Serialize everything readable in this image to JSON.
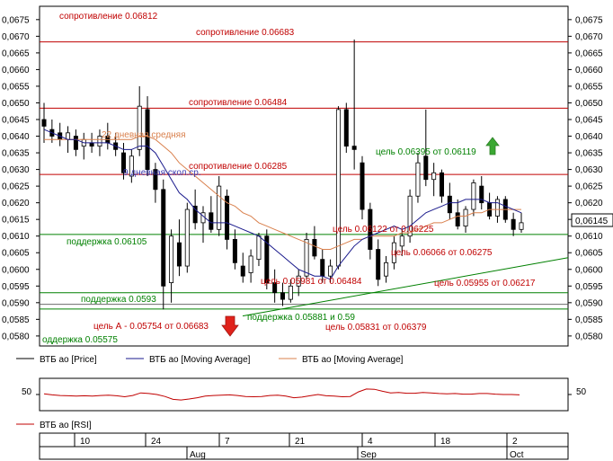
{
  "colors": {
    "resistance": "#c00000",
    "support": "#008000",
    "ma_blue": "#1a1a8c",
    "ma_orange": "#d9804d",
    "rsi": "#c00000",
    "trend": "#008000",
    "candle_up": "#ffffff",
    "candle_down": "#000000"
  },
  "chart_data": [
    {
      "type": "candlestick",
      "title": "",
      "y_ticks": [
        "0,0675",
        "0,0670",
        "0,0665",
        "0,0660",
        "0,0655",
        "0,0650",
        "0,0645",
        "0,0640",
        "0,0635",
        "0,0630",
        "0,0625",
        "0,0620",
        "0,0615",
        "0,0610",
        "0,0605",
        "0,0600",
        "0,0595",
        "0,0590",
        "0,0585",
        "0,0580"
      ],
      "ylim": [
        0.0577,
        0.0679
      ],
      "current_price_label": "0,06145",
      "current_price": 0.06145,
      "x_ticks": [
        "10",
        "24",
        "7",
        "21",
        "4",
        "18",
        "2"
      ],
      "x_months": [
        "Aug",
        "Sep",
        "Oct"
      ],
      "legend": [
        "ВТБ ао [Price]",
        "ВТБ ао [Moving Average]",
        "ВТБ ао [Moving Average]"
      ],
      "ohlc": [
        [
          0.0645,
          0.065,
          0.0638,
          0.0643
        ],
        [
          0.0642,
          0.0645,
          0.0638,
          0.064
        ],
        [
          0.0641,
          0.0644,
          0.0637,
          0.0639
        ],
        [
          0.0639,
          0.0643,
          0.0635,
          0.0641
        ],
        [
          0.064,
          0.0642,
          0.0634,
          0.0636
        ],
        [
          0.0637,
          0.0641,
          0.0633,
          0.0639
        ],
        [
          0.0638,
          0.0641,
          0.0635,
          0.0637
        ],
        [
          0.0637,
          0.0642,
          0.0634,
          0.064
        ],
        [
          0.064,
          0.0644,
          0.0636,
          0.0638
        ],
        [
          0.0638,
          0.0641,
          0.0634,
          0.0636
        ],
        [
          0.0635,
          0.0638,
          0.0627,
          0.0629
        ],
        [
          0.0628,
          0.0636,
          0.0626,
          0.0634
        ],
        [
          0.0636,
          0.0655,
          0.0634,
          0.0649
        ],
        [
          0.0648,
          0.0652,
          0.0628,
          0.063
        ],
        [
          0.063,
          0.0632,
          0.062,
          0.0624
        ],
        [
          0.0624,
          0.0627,
          0.0588,
          0.0595
        ],
        [
          0.0596,
          0.0612,
          0.059,
          0.061
        ],
        [
          0.0608,
          0.0615,
          0.0598,
          0.0601
        ],
        [
          0.0601,
          0.062,
          0.0599,
          0.0618
        ],
        [
          0.0619,
          0.0624,
          0.0612,
          0.0614
        ],
        [
          0.0614,
          0.0619,
          0.0608,
          0.0617
        ],
        [
          0.0617,
          0.0622,
          0.0611,
          0.0612
        ],
        [
          0.0612,
          0.0628,
          0.061,
          0.0625
        ],
        [
          0.0622,
          0.0624,
          0.0606,
          0.0609
        ],
        [
          0.0609,
          0.0612,
          0.06,
          0.0602
        ],
        [
          0.0601,
          0.0605,
          0.0596,
          0.0598
        ],
        [
          0.0599,
          0.0606,
          0.0596,
          0.0604
        ],
        [
          0.0603,
          0.0611,
          0.0601,
          0.061
        ],
        [
          0.061,
          0.0612,
          0.0594,
          0.0596
        ],
        [
          0.0596,
          0.06,
          0.059,
          0.0593
        ],
        [
          0.0593,
          0.0596,
          0.0589,
          0.0591
        ],
        [
          0.0591,
          0.0597,
          0.059,
          0.0595
        ],
        [
          0.0595,
          0.06,
          0.0592,
          0.0598
        ],
        [
          0.0598,
          0.0611,
          0.0597,
          0.0609
        ],
        [
          0.0609,
          0.0613,
          0.0603,
          0.0604
        ],
        [
          0.0603,
          0.0606,
          0.0596,
          0.0598
        ],
        [
          0.0598,
          0.0603,
          0.0596,
          0.0601
        ],
        [
          0.0601,
          0.0649,
          0.06,
          0.0648
        ],
        [
          0.0648,
          0.065,
          0.0635,
          0.0637
        ],
        [
          0.0637,
          0.0669,
          0.063,
          0.0636
        ],
        [
          0.0632,
          0.0634,
          0.0615,
          0.0618
        ],
        [
          0.0618,
          0.062,
          0.0603,
          0.0606
        ],
        [
          0.0606,
          0.0609,
          0.0595,
          0.0597
        ],
        [
          0.0598,
          0.0604,
          0.0596,
          0.0602
        ],
        [
          0.0602,
          0.061,
          0.06,
          0.0608
        ],
        [
          0.0607,
          0.0612,
          0.0604,
          0.061
        ],
        [
          0.061,
          0.0624,
          0.0608,
          0.0622
        ],
        [
          0.0622,
          0.0635,
          0.062,
          0.0632
        ],
        [
          0.0634,
          0.0648,
          0.0625,
          0.0627
        ],
        [
          0.0627,
          0.0632,
          0.0622,
          0.0629
        ],
        [
          0.0629,
          0.063,
          0.062,
          0.0622
        ],
        [
          0.0622,
          0.0626,
          0.0615,
          0.0617
        ],
        [
          0.0617,
          0.0621,
          0.0612,
          0.0613
        ],
        [
          0.0613,
          0.0619,
          0.0611,
          0.0618
        ],
        [
          0.0618,
          0.0627,
          0.0616,
          0.0626
        ],
        [
          0.0625,
          0.0628,
          0.0618,
          0.062
        ],
        [
          0.062,
          0.0623,
          0.0615,
          0.0616
        ],
        [
          0.0616,
          0.0622,
          0.0614,
          0.0621
        ],
        [
          0.0621,
          0.0622,
          0.0614,
          0.0615
        ],
        [
          0.0615,
          0.0617,
          0.061,
          0.0612
        ],
        [
          0.0612,
          0.0617,
          0.0611,
          0.0614
        ]
      ],
      "ma9": [
        0.0642,
        0.0641,
        0.064,
        0.0639,
        0.0639,
        0.0638,
        0.0638,
        0.0638,
        0.0638,
        0.0637,
        0.0636,
        0.0636,
        0.0637,
        0.0637,
        0.0635,
        0.0631,
        0.0627,
        0.0623,
        0.0621,
        0.0618,
        0.0616,
        0.0614,
        0.0614,
        0.0614,
        0.0613,
        0.0612,
        0.0611,
        0.061,
        0.0608,
        0.0606,
        0.0604,
        0.0602,
        0.06,
        0.0599,
        0.0598,
        0.0598,
        0.0597,
        0.0601,
        0.0604,
        0.0607,
        0.0609,
        0.061,
        0.0611,
        0.0612,
        0.0613,
        0.0612,
        0.0613,
        0.0615,
        0.0617,
        0.0618,
        0.0619,
        0.062,
        0.062,
        0.0621,
        0.0621,
        0.0621,
        0.062,
        0.062,
        0.0619,
        0.0618,
        0.0617
      ],
      "ma22": [
        0.0639,
        0.0639,
        0.0639,
        0.0639,
        0.0639,
        0.0639,
        0.0639,
        0.0639,
        0.0639,
        0.0639,
        0.0639,
        0.0639,
        0.064,
        0.064,
        0.0639,
        0.0637,
        0.0635,
        0.0632,
        0.063,
        0.0628,
        0.0626,
        0.0624,
        0.0622,
        0.062,
        0.0619,
        0.0617,
        0.0616,
        0.0614,
        0.0613,
        0.0612,
        0.0611,
        0.061,
        0.0609,
        0.0608,
        0.0607,
        0.0606,
        0.0606,
        0.0607,
        0.0608,
        0.0609,
        0.0609,
        0.061,
        0.061,
        0.061,
        0.061,
        0.0611,
        0.0611,
        0.0612,
        0.0613,
        0.0614,
        0.0614,
        0.0615,
        0.0616,
        0.0616,
        0.0617,
        0.0617,
        0.0618,
        0.0618,
        0.0618,
        0.0618,
        0.0618
      ],
      "levels": [
        {
          "kind": "resistance",
          "value": 0.06683,
          "label": "сопротивление 0.06683"
        },
        {
          "kind": "resistance",
          "value": 0.06484,
          "label": "сопротивление 0.06484"
        },
        {
          "kind": "resistance",
          "value": 0.06285,
          "label": "сопротивление 0.06285"
        },
        {
          "kind": "support",
          "value": 0.06105,
          "label": "поддержка 0.06105"
        },
        {
          "kind": "support",
          "value": 0.0593,
          "label": "поддержка 0.0593"
        },
        {
          "kind": "support",
          "value": 0.05881,
          "label": "поддержка 0.05881 и 0.59"
        }
      ],
      "annotations": [
        {
          "text": "сопротивление 0.06812",
          "kind": "resistance"
        },
        {
          "text": "22 дневная средняя",
          "kind": "ma_orange"
        },
        {
          "text": "9 дневная скол.ср.",
          "kind": "ma_blue"
        },
        {
          "text": "цель 0.06395 от 0.06119",
          "kind": "support"
        },
        {
          "text": "цель 0.06122 от 0.06225",
          "kind": "resistance"
        },
        {
          "text": "цель 0.06066 от 0.06275",
          "kind": "resistance"
        },
        {
          "text": "цель 0.05955 от 0.06217",
          "kind": "resistance"
        },
        {
          "text": "цель 0.05981 от 0.06484",
          "kind": "resistance"
        },
        {
          "text": "цель 0.05831 от 0.06379",
          "kind": "resistance"
        },
        {
          "text": "цель А - 0.05754 от 0.06683",
          "kind": "resistance"
        },
        {
          "text": "оддержка 0.05575",
          "kind": "support"
        }
      ]
    },
    {
      "type": "line",
      "title": "",
      "legend": [
        "ВТБ ао [RSI]"
      ],
      "y_tick": "50",
      "ylim": [
        0,
        100
      ],
      "values": [
        52,
        49,
        47,
        46,
        45,
        46,
        45,
        47,
        48,
        46,
        43,
        47,
        55,
        53,
        50,
        44,
        35,
        33,
        36,
        40,
        45,
        47,
        48,
        49,
        47,
        44,
        43,
        44,
        47,
        48,
        45,
        40,
        42,
        46,
        50,
        46,
        45,
        43,
        44,
        58,
        67,
        66,
        60,
        55,
        56,
        54,
        54,
        56,
        55,
        53,
        52,
        53,
        51,
        51,
        53,
        53,
        51,
        50,
        50,
        49
      ]
    }
  ]
}
